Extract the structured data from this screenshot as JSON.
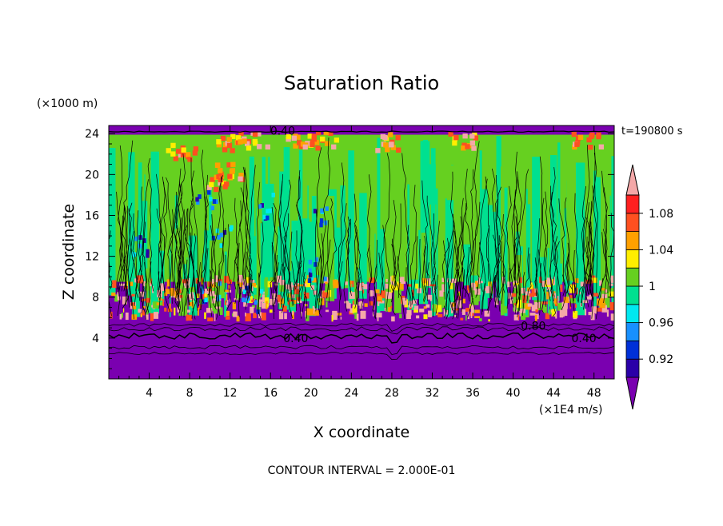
{
  "chart_data": {
    "type": "heatmap",
    "title": "Saturation Ratio",
    "xlabel": "X coordinate",
    "ylabel": "Z coordinate",
    "x_unit": "(×1E4 m/s)",
    "y_unit": "(×1000 m)",
    "time_label": "t=190800 s",
    "footer": "CONTOUR INTERVAL = 2.000E-01",
    "xlim": [
      0,
      50
    ],
    "ylim": [
      0,
      24.8
    ],
    "x_ticks": [
      4,
      8,
      12,
      16,
      20,
      24,
      28,
      32,
      36,
      40,
      44,
      48
    ],
    "y_ticks": [
      4,
      8,
      12,
      16,
      20,
      24
    ],
    "colorbar": {
      "levels": [
        0.9,
        0.92,
        0.94,
        0.96,
        0.98,
        1.0,
        1.02,
        1.04,
        1.06,
        1.08,
        1.1
      ],
      "labels": [
        "0.92",
        "0.96",
        "1",
        "1.04",
        "1.08"
      ],
      "label_levels": [
        0.92,
        0.96,
        1.0,
        1.04,
        1.08
      ],
      "colors": [
        "#7a00b0",
        "#2a00a8",
        "#0030d8",
        "#1890ff",
        "#00e8f0",
        "#00e090",
        "#66d020",
        "#ffee00",
        "#ffa000",
        "#ff5020",
        "#ff2020",
        "#f4a8a8"
      ]
    },
    "contour_labels": [
      {
        "text": "0.40",
        "x": 17.2,
        "y": 24.3
      },
      {
        "text": "0.40",
        "x": 18.5,
        "y": 4.0
      },
      {
        "text": "0.40",
        "x": 47.0,
        "y": 4.0
      },
      {
        "text": "0.80",
        "x": 42.0,
        "y": 5.2
      }
    ]
  }
}
